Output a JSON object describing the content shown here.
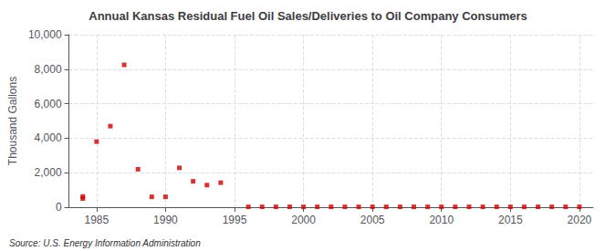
{
  "chart_data": {
    "type": "scatter",
    "title": "Annual Kansas Residual Fuel Oil Sales/Deliveries to Oil Company Consumers",
    "ylabel": "Thousand Gallons",
    "annotations": [
      "Source: U.S. Energy Information Administration"
    ],
    "color": "#cc0000",
    "marker": "square",
    "grid": true,
    "xlim": [
      1983,
      2021
    ],
    "ylim": [
      0,
      10000
    ],
    "xticks": [
      1985,
      1990,
      1995,
      2000,
      2005,
      2010,
      2015,
      2020
    ],
    "yticks": [
      0,
      {
        "value": 2000,
        "label": "2,000"
      },
      {
        "value": 4000,
        "label": "4,000"
      },
      {
        "value": 6000,
        "label": "6,000"
      },
      {
        "value": 8000,
        "label": "8,000"
      },
      {
        "value": 10000,
        "label": "10,000"
      }
    ],
    "x": [
      1984,
      1984,
      1985,
      1986,
      1987,
      1988,
      1989,
      1990,
      1991,
      1992,
      1993,
      1994,
      1996,
      1997,
      1998,
      1999,
      2000,
      2001,
      2002,
      2003,
      2004,
      2005,
      2006,
      2007,
      2008,
      2009,
      2010,
      2011,
      2012,
      2013,
      2014,
      2015,
      2016,
      2017,
      2018,
      2019,
      2020
    ],
    "values": [
      620,
      500,
      3800,
      4700,
      8250,
      2200,
      600,
      600,
      2280,
      1500,
      1280,
      1420,
      20,
      20,
      20,
      20,
      20,
      20,
      20,
      20,
      20,
      20,
      20,
      20,
      20,
      20,
      20,
      20,
      20,
      20,
      20,
      20,
      20,
      20,
      20,
      20,
      20
    ]
  }
}
